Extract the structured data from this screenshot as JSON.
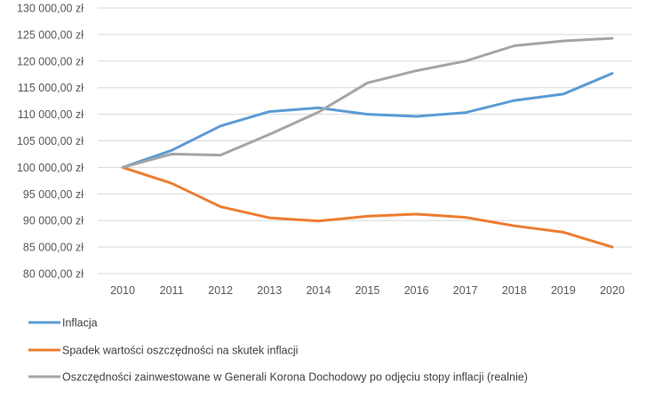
{
  "chart_data": {
    "type": "line",
    "title": "",
    "xlabel": "",
    "ylabel": "",
    "categories": [
      "2010",
      "2011",
      "2012",
      "2013",
      "2014",
      "2015",
      "2016",
      "2017",
      "2018",
      "2019",
      "2020"
    ],
    "ylim": [
      80000,
      130000
    ],
    "ytick_step": 5000,
    "ytick_labels": [
      "80 000,00 zł",
      "85 000,00 zł",
      "90 000,00 zł",
      "95 000,00 zł",
      "100 000,00 zł",
      "105 000,00 zł",
      "110 000,00 zł",
      "115 000,00 zł",
      "120 000,00 zł",
      "125 000,00 zł",
      "130 000,00 zł"
    ],
    "grid": true,
    "legend_position": "bottom",
    "series": [
      {
        "name": "Inflacja",
        "color": "#5B9BD5",
        "values": [
          100000,
          103200,
          107800,
          110500,
          111200,
          110000,
          109600,
          110300,
          112600,
          113800,
          117700
        ]
      },
      {
        "name": "Spadek wartości oszczędności na skutek inflacji",
        "color": "#ED7D31",
        "values": [
          100000,
          97000,
          92600,
          90500,
          89900,
          90800,
          91200,
          90600,
          89000,
          87800,
          85000
        ]
      },
      {
        "name": "Oszczędności zainwestowane w Generali Korona Dochodowy po odjęciu stopy inflacji (realnie)",
        "color": "#A5A5A5",
        "values": [
          100000,
          102500,
          102300,
          106200,
          110400,
          115900,
          118200,
          120000,
          122900,
          123800,
          124300
        ]
      }
    ]
  }
}
